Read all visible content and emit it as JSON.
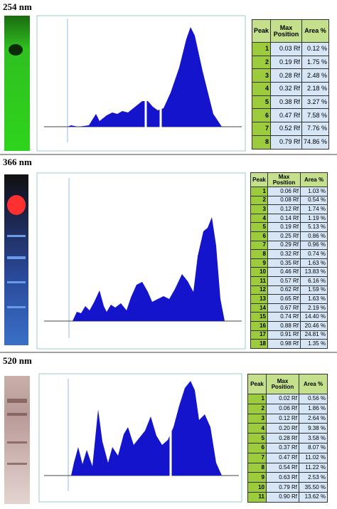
{
  "panels": [
    {
      "label": "254 nm",
      "table": {
        "header": [
          "Peak",
          "Max Position",
          "Area %"
        ],
        "rows": [
          [
            "1",
            "0.03 Rf",
            "0.12 %"
          ],
          [
            "2",
            "0.19 Rf",
            "1.75 %"
          ],
          [
            "3",
            "0.28 Rf",
            "2.48 %"
          ],
          [
            "4",
            "0.32 Rf",
            "2.18 %"
          ],
          [
            "5",
            "0.38 Rf",
            "3.27 %"
          ],
          [
            "6",
            "0.47 Rf",
            "7.58 %"
          ],
          [
            "7",
            "0.52 Rf",
            "7.76 %"
          ],
          [
            "8",
            "0.79 Rf",
            "74.86 %"
          ]
        ]
      }
    },
    {
      "label": "366 nm",
      "table": {
        "header": [
          "Peak",
          "Max Position",
          "Area %"
        ],
        "rows": [
          [
            "1",
            "0.06 Rf",
            "1.03 %"
          ],
          [
            "2",
            "0.08 Rf",
            "0.54 %"
          ],
          [
            "3",
            "0.12 Rf",
            "1.74 %"
          ],
          [
            "4",
            "0.14 Rf",
            "1.19 %"
          ],
          [
            "5",
            "0.19 Rf",
            "5.13 %"
          ],
          [
            "6",
            "0.25 Rf",
            "0.86 %"
          ],
          [
            "7",
            "0.29 Rf",
            "0.96 %"
          ],
          [
            "8",
            "0.32 Rf",
            "0.74 %"
          ],
          [
            "9",
            "0.35 Rf",
            "1.63 %"
          ],
          [
            "10",
            "0.46 Rf",
            "13.83 %"
          ],
          [
            "11",
            "0.57 Rf",
            "6.16 %"
          ],
          [
            "12",
            "0.62 Rf",
            "1.59 %"
          ],
          [
            "13",
            "0.65 Rf",
            "1.63 %"
          ],
          [
            "14",
            "0.67 Rf",
            "2.19 %"
          ],
          [
            "15",
            "0.74 Rf",
            "14.40 %"
          ],
          [
            "16",
            "0.88 Rf",
            "20.46 %"
          ],
          [
            "17",
            "0.91 Rf",
            "24.81 %"
          ],
          [
            "18",
            "0.98 Rf",
            "1.35 %"
          ]
        ]
      }
    },
    {
      "label": "520 nm",
      "table": {
        "header": [
          "Peak",
          "Max Position",
          "Area %"
        ],
        "rows": [
          [
            "1",
            "0.02 Rf",
            "0.56 %"
          ],
          [
            "2",
            "0.06 Rf",
            "1.86 %"
          ],
          [
            "3",
            "0.12 Rf",
            "2.64 %"
          ],
          [
            "4",
            "0.20 Rf",
            "9.38 %"
          ],
          [
            "5",
            "0.28 Rf",
            "3.58 %"
          ],
          [
            "6",
            "0.37 Rf",
            "8.07 %"
          ],
          [
            "7",
            "0.47 Rf",
            "11.02 %"
          ],
          [
            "8",
            "0.54 Rf",
            "11.22 %"
          ],
          [
            "9",
            "0.63 Rf",
            "2.53 %"
          ],
          [
            "10",
            "0.79 Rf",
            "35.50 %"
          ],
          [
            "11",
            "0.90 Rf",
            "13.62 %"
          ]
        ]
      }
    }
  ]
}
